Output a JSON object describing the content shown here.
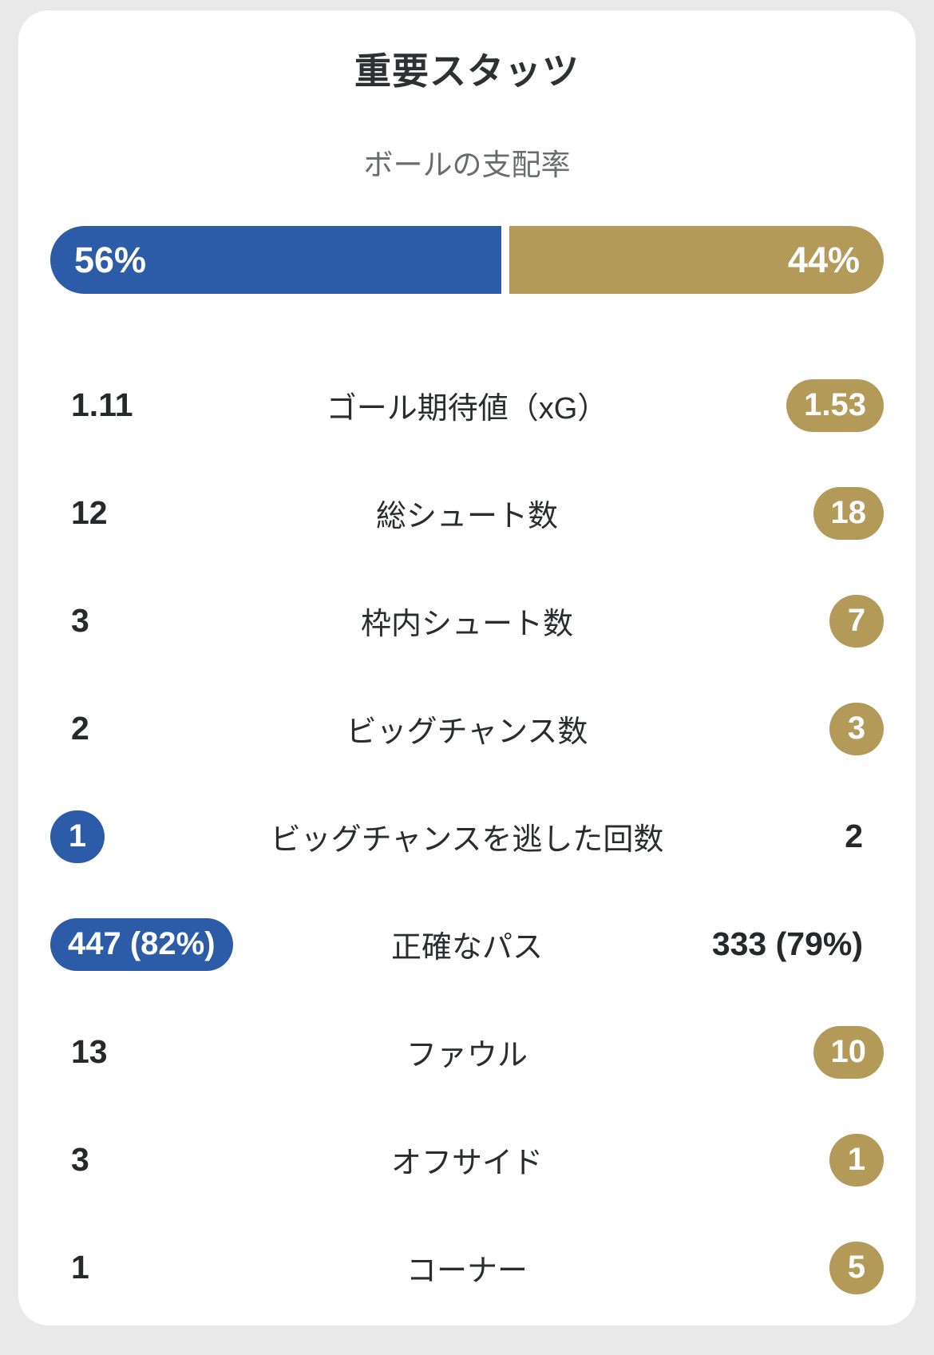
{
  "page": {
    "background": "#e9e9ea",
    "card_background": "#ffffff"
  },
  "colors": {
    "home": "#2c5ba8",
    "away": "#b39a58",
    "title_text": "#2e3033",
    "subtitle_text": "#6a6c70",
    "value_text": "#26282c",
    "pill_text": "#ffffff"
  },
  "header": {
    "title": "重要スタッツ"
  },
  "possession": {
    "label": "ボールの支配率",
    "home_pct": 56,
    "away_pct": 44,
    "home_label": "56%",
    "away_label": "44%"
  },
  "stats": [
    {
      "home": "1.11",
      "label": "ゴール期待値（xG）",
      "away": "1.53",
      "highlight": "away"
    },
    {
      "home": "12",
      "label": "総シュート数",
      "away": "18",
      "highlight": "away"
    },
    {
      "home": "3",
      "label": "枠内シュート数",
      "away": "7",
      "highlight": "away"
    },
    {
      "home": "2",
      "label": "ビッグチャンス数",
      "away": "3",
      "highlight": "away"
    },
    {
      "home": "1",
      "label": "ビッグチャンスを逃した回数",
      "away": "2",
      "highlight": "home"
    },
    {
      "home": "447 (82%)",
      "label": "正確なパス",
      "away": "333 (79%)",
      "highlight": "home"
    },
    {
      "home": "13",
      "label": "ファウル",
      "away": "10",
      "highlight": "away"
    },
    {
      "home": "3",
      "label": "オフサイド",
      "away": "1",
      "highlight": "away"
    },
    {
      "home": "1",
      "label": "コーナー",
      "away": "5",
      "highlight": "away"
    }
  ],
  "chart_data": {
    "type": "table",
    "title": "重要スタッツ",
    "categories": [
      "ボールの支配率",
      "ゴール期待値（xG）",
      "総シュート数",
      "枠内シュート数",
      "ビッグチャンス数",
      "ビッグチャンスを逃した回数",
      "正確なパス",
      "ファウル",
      "オフサイド",
      "コーナー"
    ],
    "series": [
      {
        "name": "home",
        "values": [
          "56%",
          "1.11",
          "12",
          "3",
          "2",
          "1",
          "447 (82%)",
          "13",
          "3",
          "1"
        ]
      },
      {
        "name": "away",
        "values": [
          "44%",
          "1.53",
          "18",
          "7",
          "3",
          "2",
          "333 (79%)",
          "10",
          "1",
          "5"
        ]
      }
    ]
  }
}
